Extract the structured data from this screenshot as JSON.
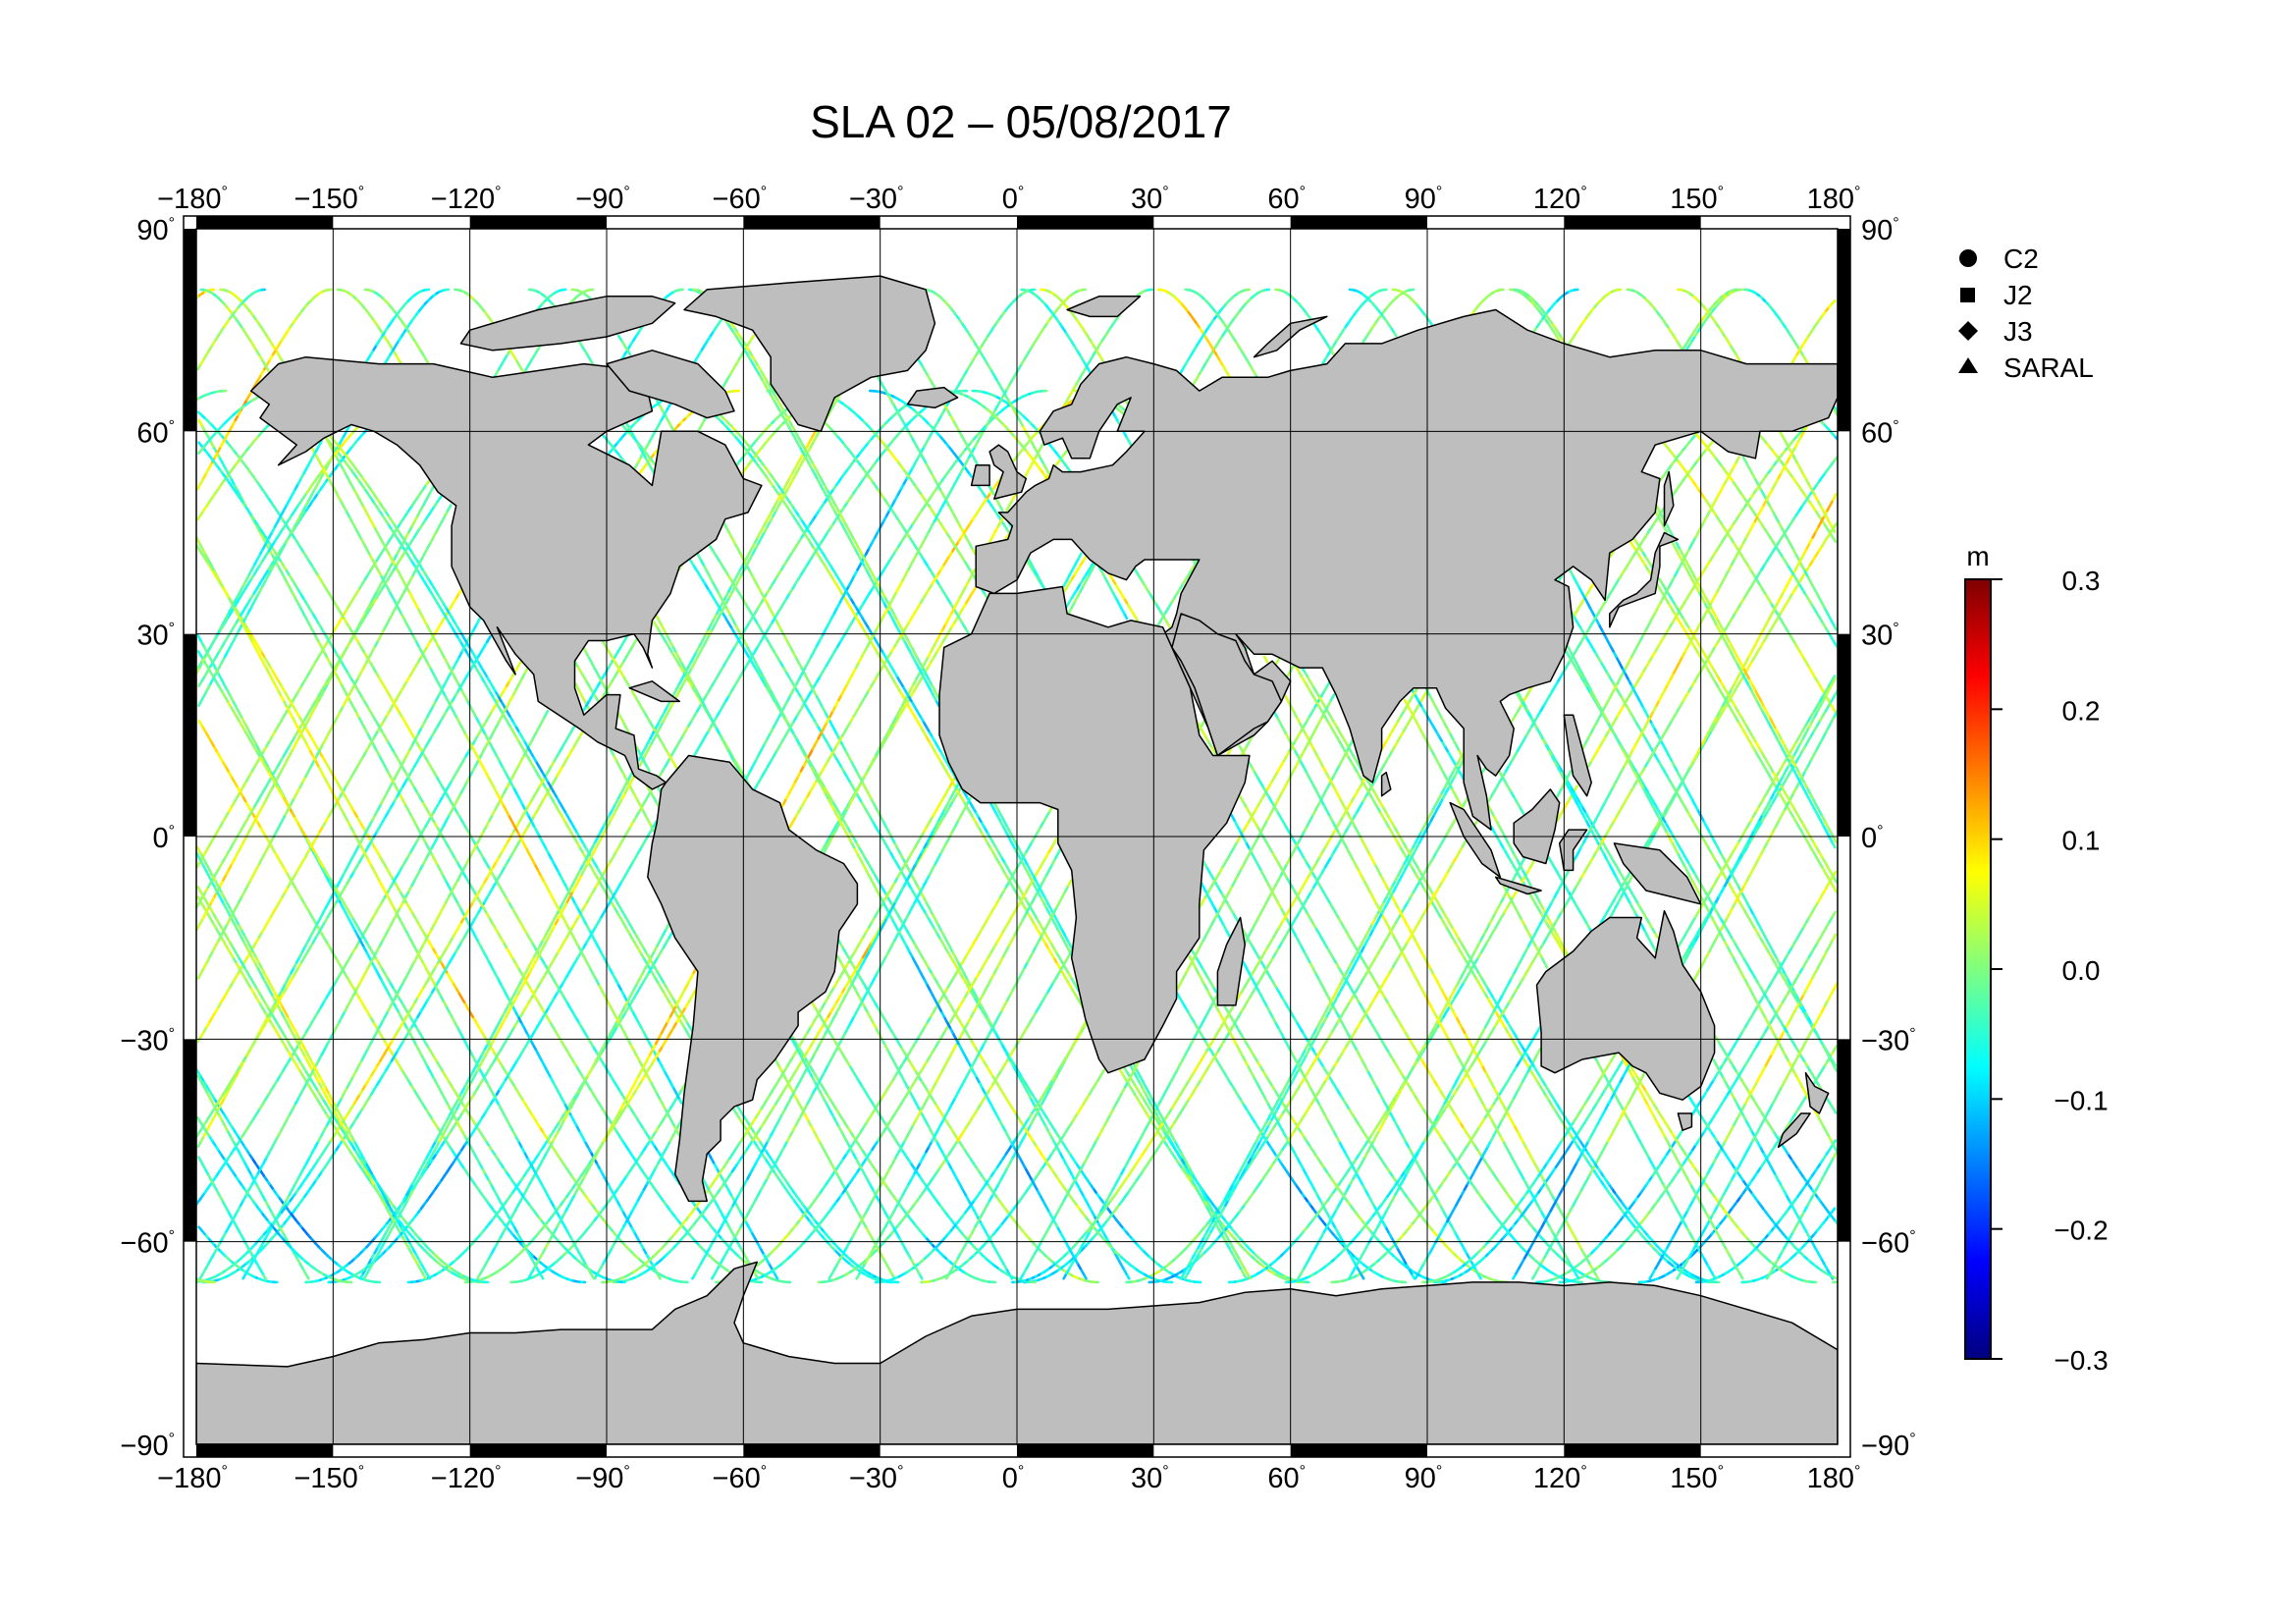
{
  "title": "SLA 02 – 05/08/2017",
  "map": {
    "projection": "equirectangular",
    "lon_range": [
      -180,
      180
    ],
    "lat_range": [
      -90,
      90
    ],
    "lon_ticks": [
      -180,
      -150,
      -120,
      -90,
      -60,
      -30,
      0,
      30,
      60,
      90,
      120,
      150,
      180
    ],
    "lat_ticks": [
      90,
      60,
      30,
      0,
      -30,
      -60,
      -90
    ],
    "lon_labels": [
      "−180",
      "−150",
      "−120",
      "−90",
      "−60",
      "−30",
      "0",
      "30",
      "60",
      "90",
      "120",
      "150",
      "180"
    ],
    "lat_labels": [
      "90",
      "60",
      "30",
      "0",
      "−30",
      "−60",
      "−90"
    ],
    "degree_symbol": "°",
    "land_color": "#bebebe",
    "ocean_color": "#ffffff"
  },
  "legend": {
    "missions": [
      {
        "label": "C2",
        "icon": "circle-icon"
      },
      {
        "label": "J2",
        "icon": "square-icon"
      },
      {
        "label": "J3",
        "icon": "diamond-icon"
      },
      {
        "label": "SARAL",
        "icon": "triangle-icon"
      }
    ]
  },
  "colorbar": {
    "unit": "m",
    "min": -0.3,
    "max": 0.3,
    "ticks": [
      0.3,
      0.2,
      0.1,
      0.0,
      -0.1,
      -0.2,
      -0.3
    ],
    "tick_labels": [
      "0.3",
      "0.2",
      "0.1",
      "0.0",
      "−0.1",
      "−0.2",
      "−0.3"
    ],
    "colormap": "jet",
    "colors": [
      "#00007f",
      "#0000ff",
      "#007fff",
      "#00ffff",
      "#7fff7f",
      "#ffff00",
      "#ff7f00",
      "#ff0000",
      "#7f0000"
    ]
  }
}
